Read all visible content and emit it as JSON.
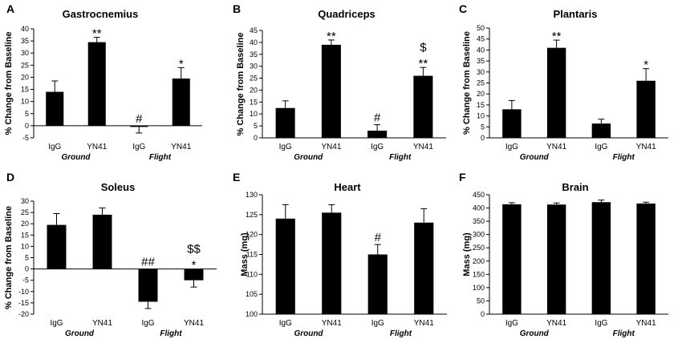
{
  "chart_data": [
    {
      "type": "bar",
      "letter": "A",
      "title": "Gastrocnemius",
      "ylabel": "% Change from Baseline",
      "ylim": [
        -5,
        40
      ],
      "yticks": [
        "-5",
        "0",
        "5",
        "10",
        "15",
        "20",
        "25",
        "30",
        "35",
        "40"
      ],
      "categories": [
        "IgG",
        "YN41",
        "IgG",
        "YN41"
      ],
      "groups": [
        "Ground",
        "Flight"
      ],
      "values": [
        14,
        34.5,
        -0.5,
        19.5
      ],
      "errors": [
        4.5,
        2,
        2.5,
        4.5
      ],
      "annotations": [
        [
          "",
          ""
        ],
        [
          "**",
          ""
        ],
        [
          "#",
          ""
        ],
        [
          "*",
          ""
        ]
      ]
    },
    {
      "type": "bar",
      "letter": "B",
      "title": "Quadriceps",
      "ylabel": "% Change from Baseline",
      "ylim": [
        0,
        45
      ],
      "yticks": [
        "0",
        "5",
        "10",
        "15",
        "20",
        "25",
        "30",
        "35",
        "40",
        "45"
      ],
      "categories": [
        "IgG",
        "YN41",
        "IgG",
        "YN41"
      ],
      "groups": [
        "Ground",
        "Flight"
      ],
      "values": [
        12.5,
        39,
        3,
        26
      ],
      "errors": [
        3,
        2,
        2.5,
        3.5
      ],
      "annotations": [
        [
          "",
          ""
        ],
        [
          "**",
          ""
        ],
        [
          "#",
          ""
        ],
        [
          "**",
          "$"
        ]
      ]
    },
    {
      "type": "bar",
      "letter": "C",
      "title": "Plantaris",
      "ylabel": "% Change from Baseline",
      "ylim": [
        0,
        50
      ],
      "yticks": [
        "0",
        "5",
        "10",
        "15",
        "20",
        "25",
        "30",
        "35",
        "40",
        "45",
        "50"
      ],
      "categories": [
        "IgG",
        "YN41",
        "IgG",
        "YN41"
      ],
      "groups": [
        "Ground",
        "Flight"
      ],
      "values": [
        13,
        41,
        6.5,
        26
      ],
      "errors": [
        4,
        3.5,
        2,
        5.5
      ],
      "annotations": [
        [
          "",
          ""
        ],
        [
          "**",
          ""
        ],
        [
          "",
          ""
        ],
        [
          "*",
          ""
        ]
      ]
    },
    {
      "type": "bar",
      "letter": "D",
      "title": "Soleus",
      "ylabel": "% Change from Baseline",
      "ylim": [
        -20,
        30
      ],
      "yticks": [
        "-20",
        "-15",
        "-10",
        "-5",
        "0",
        "5",
        "10",
        "15",
        "20",
        "25",
        "30"
      ],
      "categories": [
        "IgG",
        "YN41",
        "IgG",
        "YN41"
      ],
      "groups": [
        "Ground",
        "Flight"
      ],
      "values": [
        19.5,
        24,
        -14.5,
        -5
      ],
      "errors": [
        5,
        3,
        3,
        3
      ],
      "annotations": [
        [
          "",
          ""
        ],
        [
          "",
          ""
        ],
        [
          "##",
          ""
        ],
        [
          "*",
          "$$"
        ]
      ]
    },
    {
      "type": "bar",
      "letter": "E",
      "title": "Heart",
      "ylabel": "Mass (mg)",
      "ylim": [
        100,
        130
      ],
      "yticks": [
        "100",
        "105",
        "110",
        "115",
        "120",
        "125",
        "130"
      ],
      "categories": [
        "IgG",
        "YN41",
        "IgG",
        "YN41"
      ],
      "groups": [
        "Ground",
        "Flight"
      ],
      "values": [
        124,
        125.5,
        115,
        123
      ],
      "errors": [
        3.5,
        2,
        2.5,
        3.5
      ],
      "annotations": [
        [
          "",
          ""
        ],
        [
          "",
          ""
        ],
        [
          "#",
          ""
        ],
        [
          "",
          ""
        ]
      ]
    },
    {
      "type": "bar",
      "letter": "F",
      "title": "Brain",
      "ylabel": "Mass (mg)",
      "ylim": [
        0,
        450
      ],
      "yticks": [
        "0",
        "50",
        "100",
        "150",
        "200",
        "250",
        "300",
        "350",
        "400",
        "450"
      ],
      "categories": [
        "IgG",
        "YN41",
        "IgG",
        "YN41"
      ],
      "groups": [
        "Ground",
        "Flight"
      ],
      "values": [
        414,
        413,
        422,
        417
      ],
      "errors": [
        6,
        6,
        8,
        5
      ],
      "annotations": [
        [
          "",
          ""
        ],
        [
          "",
          ""
        ],
        [
          "",
          ""
        ],
        [
          "",
          ""
        ]
      ]
    }
  ]
}
